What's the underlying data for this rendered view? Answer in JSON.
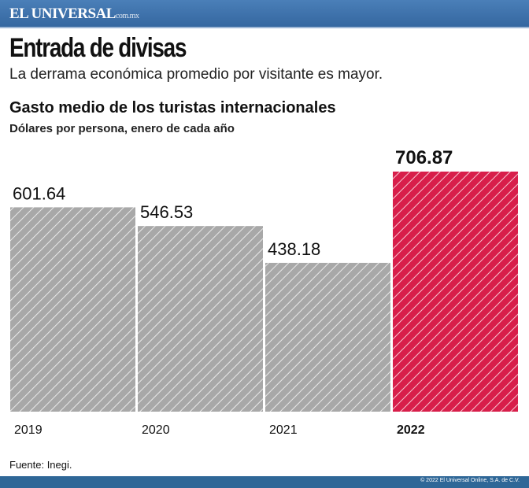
{
  "header": {
    "logo": "EL UNIVERSAL",
    "logo_suffix": "com.mx"
  },
  "title": "Entrada de divisas",
  "subtitle": "La derrama económica promedio por visitante es mayor.",
  "chart_data": {
    "type": "bar",
    "title": "Gasto medio de los turistas internacionales",
    "subtitle": "Dólares por persona, enero de cada año",
    "categories": [
      "2019",
      "2020",
      "2021",
      "2022"
    ],
    "values": [
      601.64,
      546.53,
      438.18,
      706.87
    ],
    "data_labels": [
      "601.64",
      "546.53",
      "438.18",
      "706.87"
    ],
    "colors": [
      "#a8a8a8",
      "#a8a8a8",
      "#a8a8a8",
      "#d81e4a"
    ],
    "highlight_index": 3,
    "ylim": [
      0,
      706.87
    ],
    "grid": false
  },
  "source": "Fuente: Inegi.",
  "footer": {
    "copyright": "© 2022 El Universal Online, S.A. de C.V."
  }
}
